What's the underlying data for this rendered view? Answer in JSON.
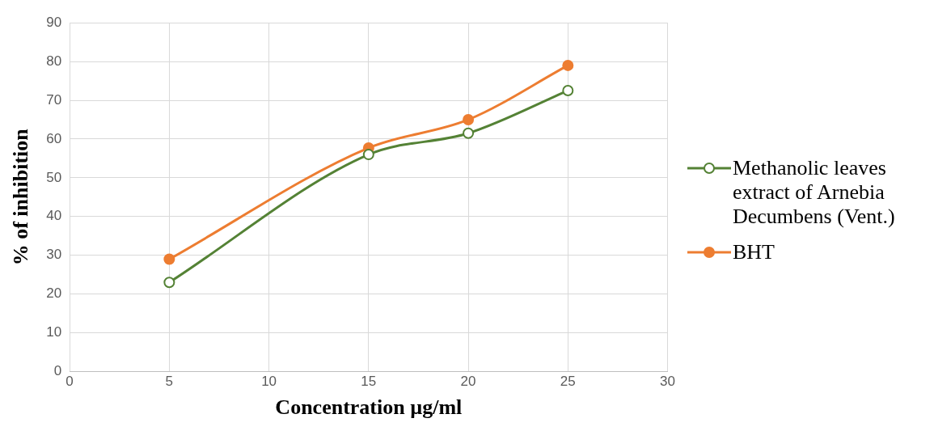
{
  "chart_data": {
    "type": "line",
    "xlabel": "Concentration µg/ml",
    "ylabel": "% of inhibition",
    "x": [
      5,
      15,
      20,
      25
    ],
    "series": [
      {
        "name": "Methanolic leaves extract of Arnebia Decumbens (Vent.)",
        "color": "#548235",
        "values": [
          23,
          56,
          61.5,
          72.5
        ]
      },
      {
        "name": "BHT",
        "color": "#ed7d31",
        "values": [
          29,
          57.7,
          65,
          79
        ]
      }
    ],
    "xlim": [
      0,
      30
    ],
    "xticks": [
      0,
      5,
      10,
      15,
      20,
      25,
      30
    ],
    "ylim": [
      0,
      90
    ],
    "yticks": [
      0,
      10,
      20,
      30,
      40,
      50,
      60,
      70,
      80,
      90
    ],
    "grid": true,
    "legend": "right",
    "marker": "circle",
    "line_style": "solid"
  }
}
